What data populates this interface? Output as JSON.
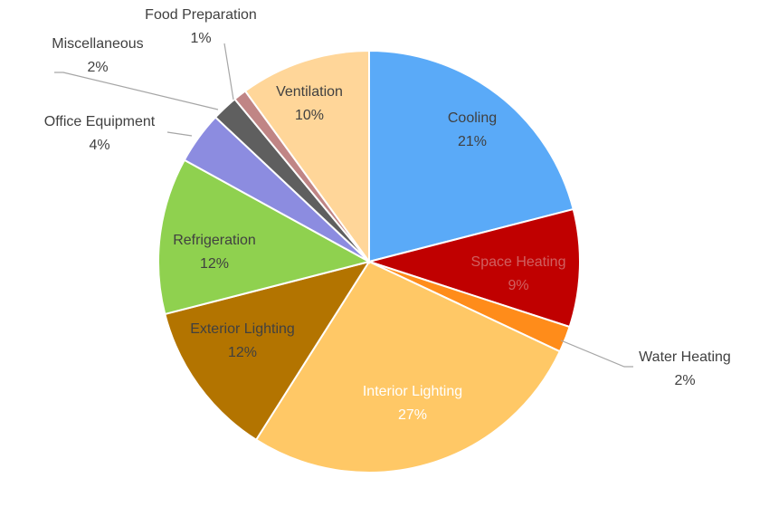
{
  "chart_data": {
    "type": "pie",
    "title": "",
    "slices": [
      {
        "name": "Cooling",
        "value": 21,
        "label": "21%",
        "color": "#5aaaf8",
        "text_color": "#404040"
      },
      {
        "name": "Space Heating",
        "value": 9,
        "label": "9%",
        "color": "#c00000",
        "text_color": "#d06060"
      },
      {
        "name": "Water Heating",
        "value": 2,
        "label": "2%",
        "color": "#ff8c1a",
        "text_color": "#404040"
      },
      {
        "name": "Interior Lighting",
        "value": 27,
        "label": "27%",
        "color": "#ffc866",
        "text_color": "#ffffff"
      },
      {
        "name": "Exterior Lighting",
        "value": 12,
        "label": "12%",
        "color": "#b37400",
        "text_color": "#404040"
      },
      {
        "name": "Refrigeration",
        "value": 12,
        "label": "12%",
        "color": "#8fd14f",
        "text_color": "#404040"
      },
      {
        "name": "Office Equipment",
        "value": 4,
        "label": "4%",
        "color": "#8c8ce0",
        "text_color": "#404040"
      },
      {
        "name": "Miscellaneous",
        "value": 2,
        "label": "2%",
        "color": "#5f5f5f",
        "text_color": "#404040"
      },
      {
        "name": "Food Preparation",
        "value": 1,
        "label": "1%",
        "color": "#c08585",
        "text_color": "#404040"
      },
      {
        "name": "Ventilation",
        "value": 10,
        "label": "10%",
        "color": "#ffd699",
        "text_color": "#404040"
      }
    ],
    "start_angle_deg": 0,
    "direction": "clockwise",
    "legend": "none"
  }
}
